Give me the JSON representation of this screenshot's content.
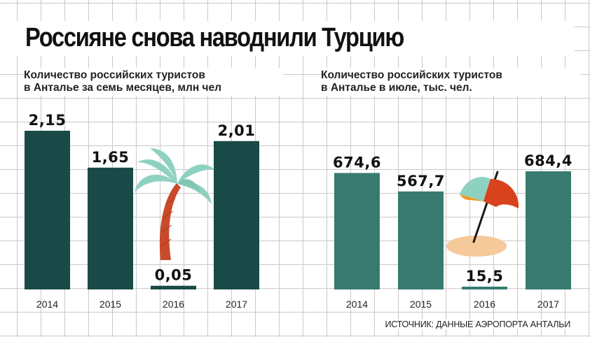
{
  "title": "Россияне снова наводнили Турцию",
  "source": "ИСТОЧНИК: ДАННЫЕ АЭРОПОРТА АНТАЛЬИ",
  "icons": [
    "palm-tree-icon",
    "beach-umbrella-icon"
  ],
  "colors": {
    "left_bars": "#1a4a47",
    "right_bars": "#387a70",
    "palm_leaves": "#8fd1c0",
    "palm_trunk": "#c94a2a",
    "umbrella_orange": "#f5961a",
    "umbrella_red": "#d8431e",
    "umbrella_mint": "#8fd1c0",
    "sand": "#f5c99a"
  },
  "chart_data": [
    {
      "type": "bar",
      "title": "Количество российских туристов в Анталье за семь месяцев, млн чел",
      "title_lines": [
        "Количество российских туристов",
        "в Анталье за семь месяцев, млн чел"
      ],
      "categories": [
        "2014",
        "2015",
        "2016",
        "2017"
      ],
      "values": [
        2.15,
        1.65,
        0.05,
        2.01
      ],
      "value_labels": [
        "2,15",
        "1,65",
        "0,05",
        "2,01"
      ],
      "xlabel": "",
      "ylabel": "",
      "ylim": [
        0,
        2.15
      ],
      "grid": true,
      "legend": "none"
    },
    {
      "type": "bar",
      "title": "Количество российских туристов в Анталье в июле, тыс. чел.",
      "title_lines": [
        "Количество российских туристов",
        "в Анталье в июле, тыс. чел."
      ],
      "categories": [
        "2014",
        "2015",
        "2016",
        "2017"
      ],
      "values": [
        674.6,
        567.7,
        15.5,
        684.4
      ],
      "value_labels": [
        "674,6",
        "567,7",
        "15,5",
        "684,4"
      ],
      "xlabel": "",
      "ylabel": "",
      "ylim": [
        0,
        684.4
      ],
      "grid": true,
      "legend": "none"
    }
  ]
}
